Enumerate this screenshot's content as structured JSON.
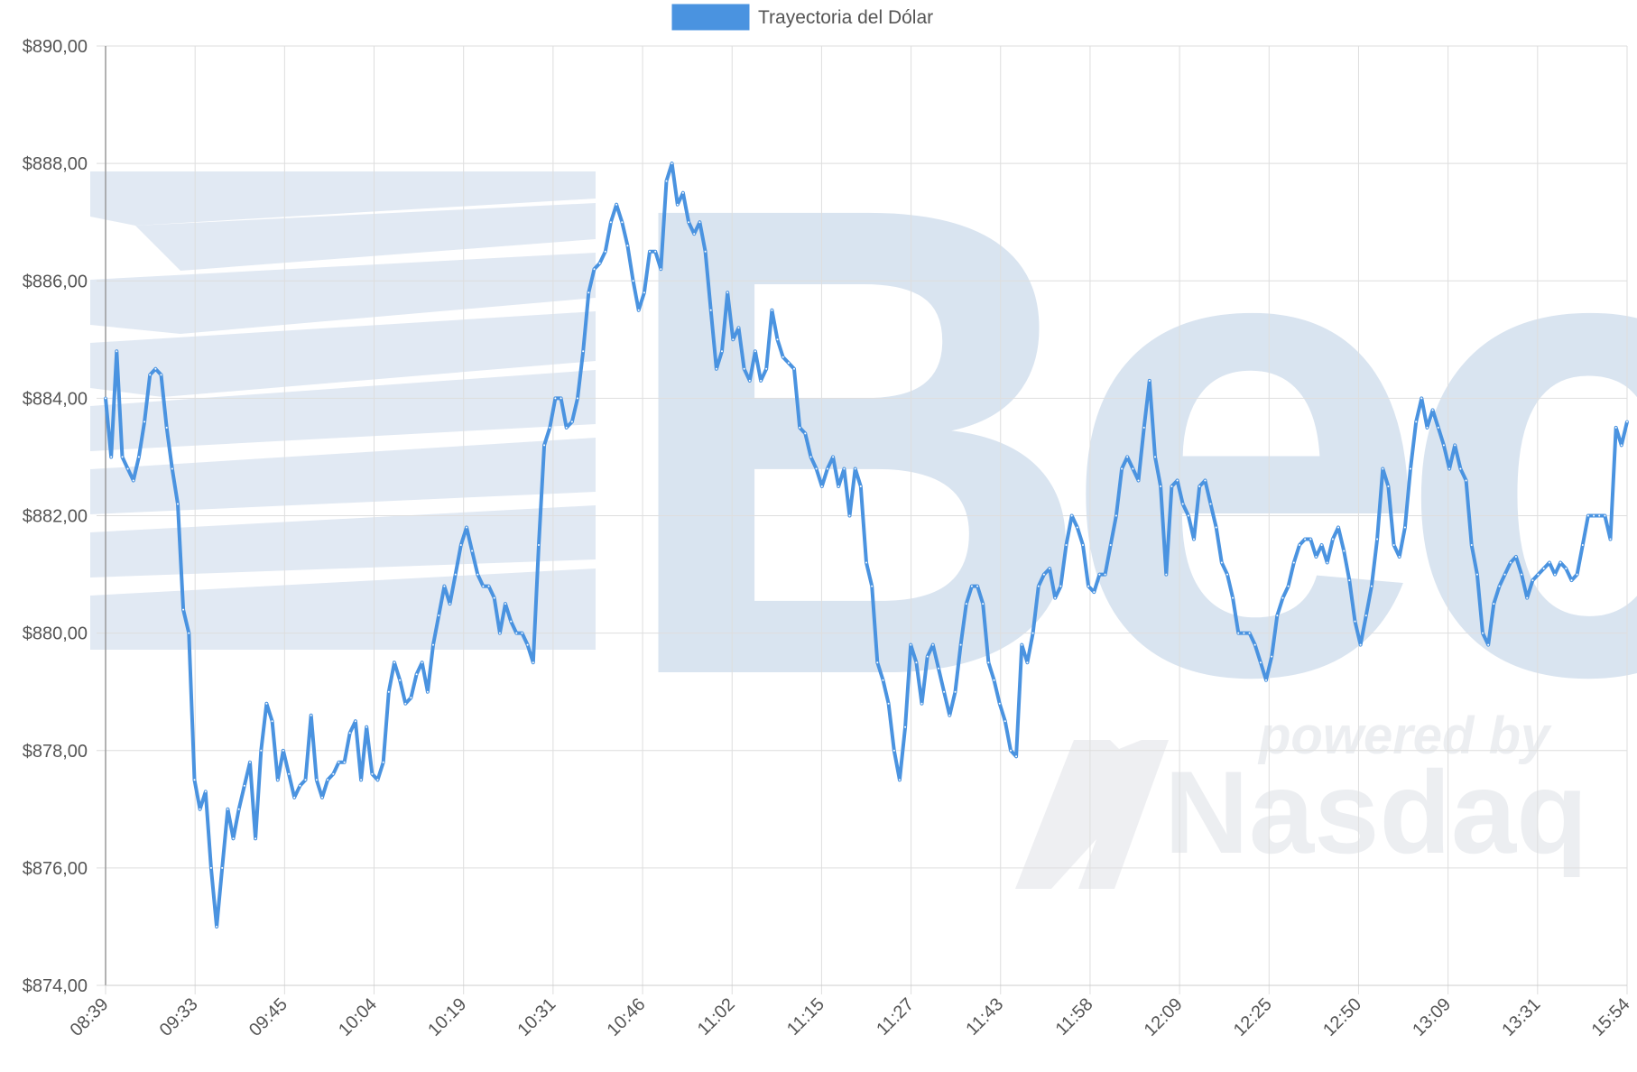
{
  "legend": {
    "label": "Trayectoria del Dólar",
    "color": "#4a93e0"
  },
  "watermark": {
    "brand_text": "Bec",
    "powered_by": "powered by",
    "partner": "Nasdaq",
    "color": "#d7e2ef"
  },
  "chart_data": {
    "type": "line",
    "title": "",
    "xlabel": "",
    "ylabel": "",
    "ylim": [
      874,
      890
    ],
    "y_ticks": [
      890,
      888,
      886,
      884,
      882,
      880,
      878,
      876,
      874
    ],
    "y_tick_labels": [
      "$890,00",
      "$888,00",
      "$886,00",
      "$884,00",
      "$882,00",
      "$880,00",
      "$878,00",
      "$876,00",
      "$874,00"
    ],
    "x_tick_labels": [
      "08:39",
      "09:33",
      "09:45",
      "10:04",
      "10:19",
      "10:31",
      "10:46",
      "11:02",
      "11:15",
      "11:27",
      "11:43",
      "11:58",
      "12:09",
      "12:25",
      "12:50",
      "13:09",
      "13:31",
      "15:54"
    ],
    "grid": true,
    "legend_position": "top",
    "series": [
      {
        "name": "Trayectoria del Dólar",
        "color": "#4a93e0",
        "values": [
          884.0,
          883.0,
          884.8,
          883.0,
          882.8,
          882.6,
          883.0,
          883.6,
          884.4,
          884.5,
          884.4,
          883.5,
          882.8,
          882.2,
          880.4,
          880.0,
          877.5,
          877.0,
          877.3,
          876.0,
          875.0,
          876.0,
          877.0,
          876.5,
          877.0,
          877.4,
          877.8,
          876.5,
          878.0,
          878.8,
          878.5,
          877.5,
          878.0,
          877.6,
          877.2,
          877.4,
          877.5,
          878.6,
          877.5,
          877.2,
          877.5,
          877.6,
          877.8,
          877.8,
          878.3,
          878.5,
          877.5,
          878.4,
          877.6,
          877.5,
          877.8,
          879.0,
          879.5,
          879.2,
          878.8,
          878.9,
          879.3,
          879.5,
          879.0,
          879.8,
          880.3,
          880.8,
          880.5,
          881.0,
          881.5,
          881.8,
          881.4,
          881.0,
          880.8,
          880.8,
          880.6,
          880.0,
          880.5,
          880.2,
          880.0,
          880.0,
          879.8,
          879.5,
          881.5,
          883.2,
          883.5,
          884.0,
          884.0,
          883.5,
          883.6,
          884.0,
          884.8,
          885.8,
          886.2,
          886.3,
          886.5,
          887.0,
          887.3,
          887.0,
          886.6,
          886.0,
          885.5,
          885.8,
          886.5,
          886.5,
          886.2,
          887.7,
          888.0,
          887.3,
          887.5,
          887.0,
          886.8,
          887.0,
          886.5,
          885.5,
          884.5,
          884.8,
          885.8,
          885.0,
          885.2,
          884.5,
          884.3,
          884.8,
          884.3,
          884.5,
          885.5,
          885.0,
          884.7,
          884.6,
          884.5,
          883.5,
          883.4,
          883.0,
          882.8,
          882.5,
          882.8,
          883.0,
          882.5,
          882.8,
          882.0,
          882.8,
          882.5,
          881.2,
          880.8,
          879.5,
          879.2,
          878.8,
          878.0,
          877.5,
          878.4,
          879.8,
          879.5,
          878.8,
          879.6,
          879.8,
          879.4,
          879.0,
          878.6,
          879.0,
          879.8,
          880.5,
          880.8,
          880.8,
          880.5,
          879.5,
          879.2,
          878.8,
          878.5,
          878.0,
          877.9,
          879.8,
          879.5,
          880.0,
          880.8,
          881.0,
          881.1,
          880.6,
          880.8,
          881.5,
          882.0,
          881.8,
          881.5,
          880.8,
          880.7,
          881.0,
          881.0,
          881.5,
          882.0,
          882.8,
          883.0,
          882.8,
          882.6,
          883.5,
          884.3,
          883.0,
          882.5,
          881.0,
          882.5,
          882.6,
          882.2,
          882.0,
          881.6,
          882.5,
          882.6,
          882.2,
          881.8,
          881.2,
          881.0,
          880.6,
          880.0,
          880.0,
          880.0,
          879.8,
          879.5,
          879.2,
          879.6,
          880.3,
          880.6,
          880.8,
          881.2,
          881.5,
          881.6,
          881.6,
          881.3,
          881.5,
          881.2,
          881.6,
          881.8,
          881.4,
          880.9,
          880.2,
          879.8,
          880.3,
          880.8,
          881.6,
          882.8,
          882.5,
          881.5,
          881.3,
          881.8,
          882.8,
          883.6,
          884.0,
          883.5,
          883.8,
          883.5,
          883.2,
          882.8,
          883.2,
          882.8,
          882.6,
          881.5,
          881.0,
          880.0,
          879.8,
          880.5,
          880.8,
          881.0,
          881.2,
          881.3,
          881.0,
          880.6,
          880.9,
          881.0,
          881.1,
          881.2,
          881.0,
          881.2,
          881.1,
          880.9,
          881.0,
          881.5,
          882.0,
          882.0,
          882.0,
          882.0,
          881.6,
          883.5,
          883.2,
          883.6
        ]
      }
    ]
  }
}
